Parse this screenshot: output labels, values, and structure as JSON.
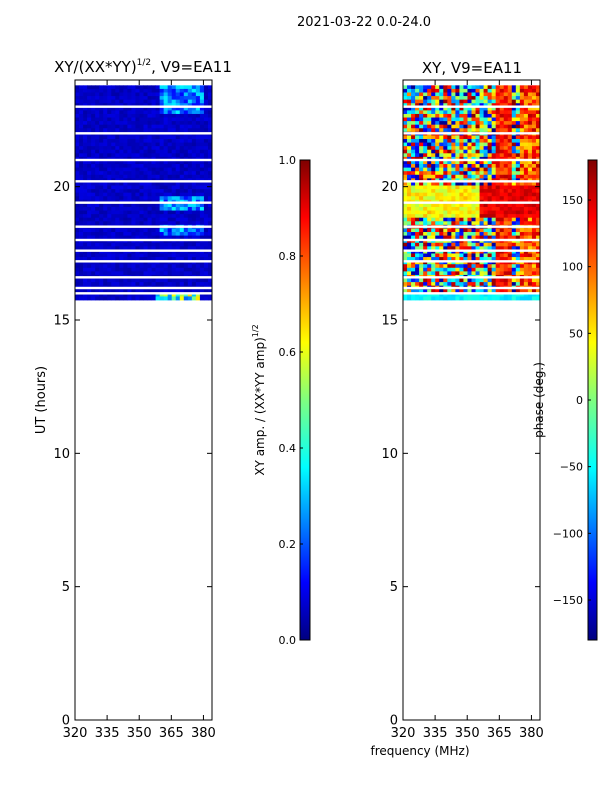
{
  "figure": {
    "suptitle": "2021-03-22 0.0-24.0",
    "shared_xlabel": "frequency (MHz)"
  },
  "chart_data": [
    {
      "type": "heatmap",
      "title_main": "XY/(XX*YY)",
      "title_sup": "1/2",
      "title_rest": ", V9=EA11",
      "xlabel": "",
      "ylabel": "UT (hours)",
      "xlim": [
        320,
        384
      ],
      "ylim": [
        0,
        24
      ],
      "xticks": [
        320,
        335,
        350,
        365,
        380
      ],
      "yticks": [
        0,
        5,
        10,
        15,
        20
      ],
      "data_range_ut": [
        15.75,
        23.8
      ],
      "gap_rows_ut": [
        16.0,
        16.2,
        16.6,
        17.2,
        17.6,
        18.0,
        18.5,
        19.4,
        20.2,
        21.0,
        22.0,
        23.0
      ],
      "colormap": "jet",
      "colorbar": {
        "label_main": "XY amp. / (XX*YY amp)",
        "label_sup": "1/2",
        "ticks": [
          "0.0",
          "0.2",
          "0.4",
          "0.6",
          "0.8",
          "1.0"
        ],
        "range": [
          0.0,
          1.0
        ]
      }
    },
    {
      "type": "heatmap",
      "title": "XY, V9=EA11",
      "xlabel": "frequency (MHz)",
      "ylabel": "",
      "xlim": [
        320,
        384
      ],
      "ylim": [
        0,
        24
      ],
      "xticks": [
        320,
        335,
        350,
        365,
        380
      ],
      "yticks": [
        0,
        5,
        10,
        15,
        20
      ],
      "data_range_ut": [
        15.75,
        23.8
      ],
      "gap_rows_ut": [
        16.0,
        16.2,
        16.6,
        17.2,
        17.6,
        18.0,
        18.5,
        19.4,
        20.2,
        21.0,
        22.0,
        23.0
      ],
      "colormap": "jet",
      "colorbar": {
        "label": "phase (deg.)",
        "ticks": [
          "150",
          "100",
          "50",
          "0",
          "−50",
          "−100",
          "−150"
        ],
        "tick_values": [
          150,
          100,
          50,
          0,
          -50,
          -100,
          -150
        ],
        "range": [
          -180,
          180
        ]
      }
    }
  ]
}
